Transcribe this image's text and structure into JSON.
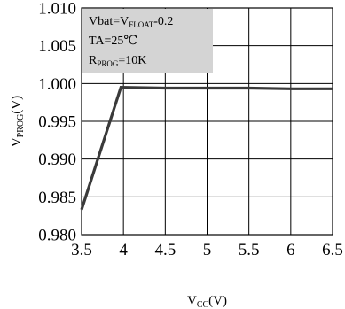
{
  "chart_data": {
    "type": "line",
    "title": "",
    "xlabel": {
      "main": "V",
      "sub": "CC",
      "suffix": "(V)"
    },
    "ylabel": {
      "main": "V",
      "sub": "PROG",
      "suffix": "(V)"
    },
    "xlim": [
      3.5,
      6.5
    ],
    "ylim": [
      0.98,
      1.01
    ],
    "x_ticks": [
      3.5,
      4,
      4.5,
      5,
      5.5,
      6,
      6.5
    ],
    "x_tick_labels": [
      "3.5",
      "4",
      "4.5",
      "5",
      "5.5",
      "6",
      "6.5"
    ],
    "y_ticks": [
      0.98,
      0.985,
      0.99,
      0.995,
      1.0,
      1.005,
      1.01
    ],
    "y_tick_labels": [
      "0.980",
      "0.985",
      "0.990",
      "0.995",
      "1.000",
      "1.005",
      "1.010"
    ],
    "grid": true,
    "series": [
      {
        "x": [
          3.5,
          3.97,
          4.5,
          5,
          5.5,
          6,
          6.5
        ],
        "y": [
          0.9833,
          0.9995,
          0.9994,
          0.9994,
          0.9994,
          0.9993,
          0.9993
        ],
        "color": "#3a3a3a"
      }
    ],
    "annotations": [
      {
        "main": "Vbat=V",
        "sub": "FLOAT",
        "suffix": "-0.2"
      },
      {
        "main": "TA=25℃",
        "sub": "",
        "suffix": ""
      },
      {
        "main": "R",
        "sub": "PROG",
        "suffix": "=10K"
      }
    ],
    "annotation_box_color": "#d4d4d4"
  }
}
